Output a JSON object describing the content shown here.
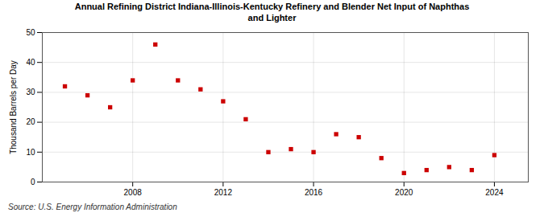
{
  "chart_data": {
    "type": "scatter",
    "title": "Annual Refining District Indiana-Illinois-Kentucky Refinery and Blender Net Input of Naphthas\nand Lighter",
    "ylabel": "Thousand Barrels per Day",
    "source": "Source: U.S. Energy Information Administration",
    "x": [
      2005,
      2006,
      2007,
      2008,
      2009,
      2010,
      2011,
      2012,
      2013,
      2014,
      2015,
      2016,
      2017,
      2018,
      2019,
      2020,
      2021,
      2022,
      2023,
      2024
    ],
    "values": [
      32.0,
      29.0,
      25.0,
      34.0,
      46.0,
      34.0,
      31.0,
      27.0,
      21.0,
      10.0,
      11.0,
      10.0,
      16.0,
      15.0,
      8.0,
      3.0,
      4.0,
      5.0,
      4.0,
      9.0
    ],
    "color": "#cc0000",
    "marker": "square",
    "xlim": [
      2004.0,
      2025.5
    ],
    "ylim": [
      0,
      50
    ],
    "xticks": [
      2008,
      2012,
      2016,
      2020,
      2024
    ],
    "yticks": [
      0,
      10,
      20,
      30,
      40,
      50
    ],
    "grid": true
  }
}
